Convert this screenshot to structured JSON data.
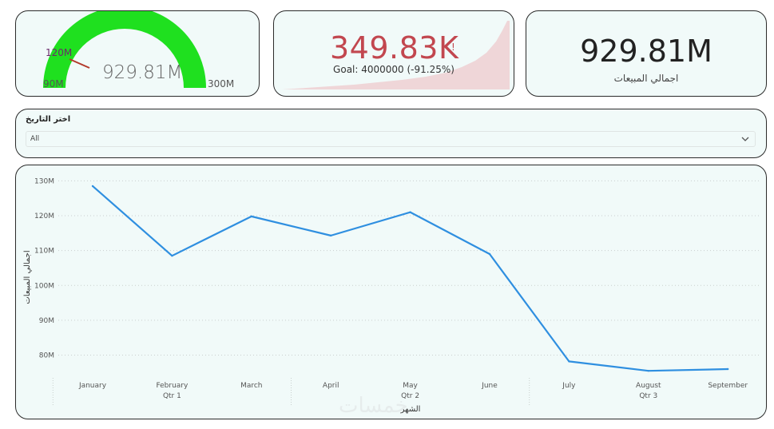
{
  "gauge": {
    "value_text": "929.81M",
    "min_text": "90M",
    "max_text": "300M",
    "target_text": "120M",
    "fill_fraction": 1.0,
    "target_fraction": 0.143,
    "fill_color": "#1fe01f",
    "target_color": "#b33a2c"
  },
  "kpi": {
    "value_text": "349.83K",
    "alert_text": "!",
    "goal_text": "Goal: 4000000 (-91.25%)",
    "value_color": "#c2474f",
    "trend_color": "#efd6d8"
  },
  "sales_card": {
    "value_text": "929.81M",
    "label": "اجمالي المبيعات"
  },
  "filter": {
    "title": "اختر التاريخ",
    "selected_value": "All",
    "chevron_icon": "chevron-down-icon"
  },
  "watermark": {
    "text": "خمسات"
  },
  "chart_data": {
    "type": "line",
    "categories": [
      "January",
      "February",
      "March",
      "April",
      "May",
      "June",
      "July",
      "August",
      "September"
    ],
    "quarters": [
      {
        "label": "Qtr 1",
        "months": [
          "January",
          "February",
          "March"
        ]
      },
      {
        "label": "Qtr 2",
        "months": [
          "April",
          "May",
          "June"
        ]
      },
      {
        "label": "Qtr 3",
        "months": [
          "July",
          "August",
          "September"
        ]
      }
    ],
    "series": [
      {
        "values": [
          128.5,
          108.5,
          119.8,
          114.3,
          121,
          109,
          78.2,
          75.5,
          76
        ]
      }
    ],
    "yticks": [
      80,
      90,
      100,
      110,
      120,
      130
    ],
    "ytick_labels": [
      "80M",
      "90M",
      "100M",
      "110M",
      "120M",
      "130M"
    ],
    "ylim": [
      76,
      131
    ],
    "xlabel": "الشهر",
    "ylabel": "اجمالي المبيعات",
    "grid": true,
    "line_color": "#2f8fe0"
  }
}
